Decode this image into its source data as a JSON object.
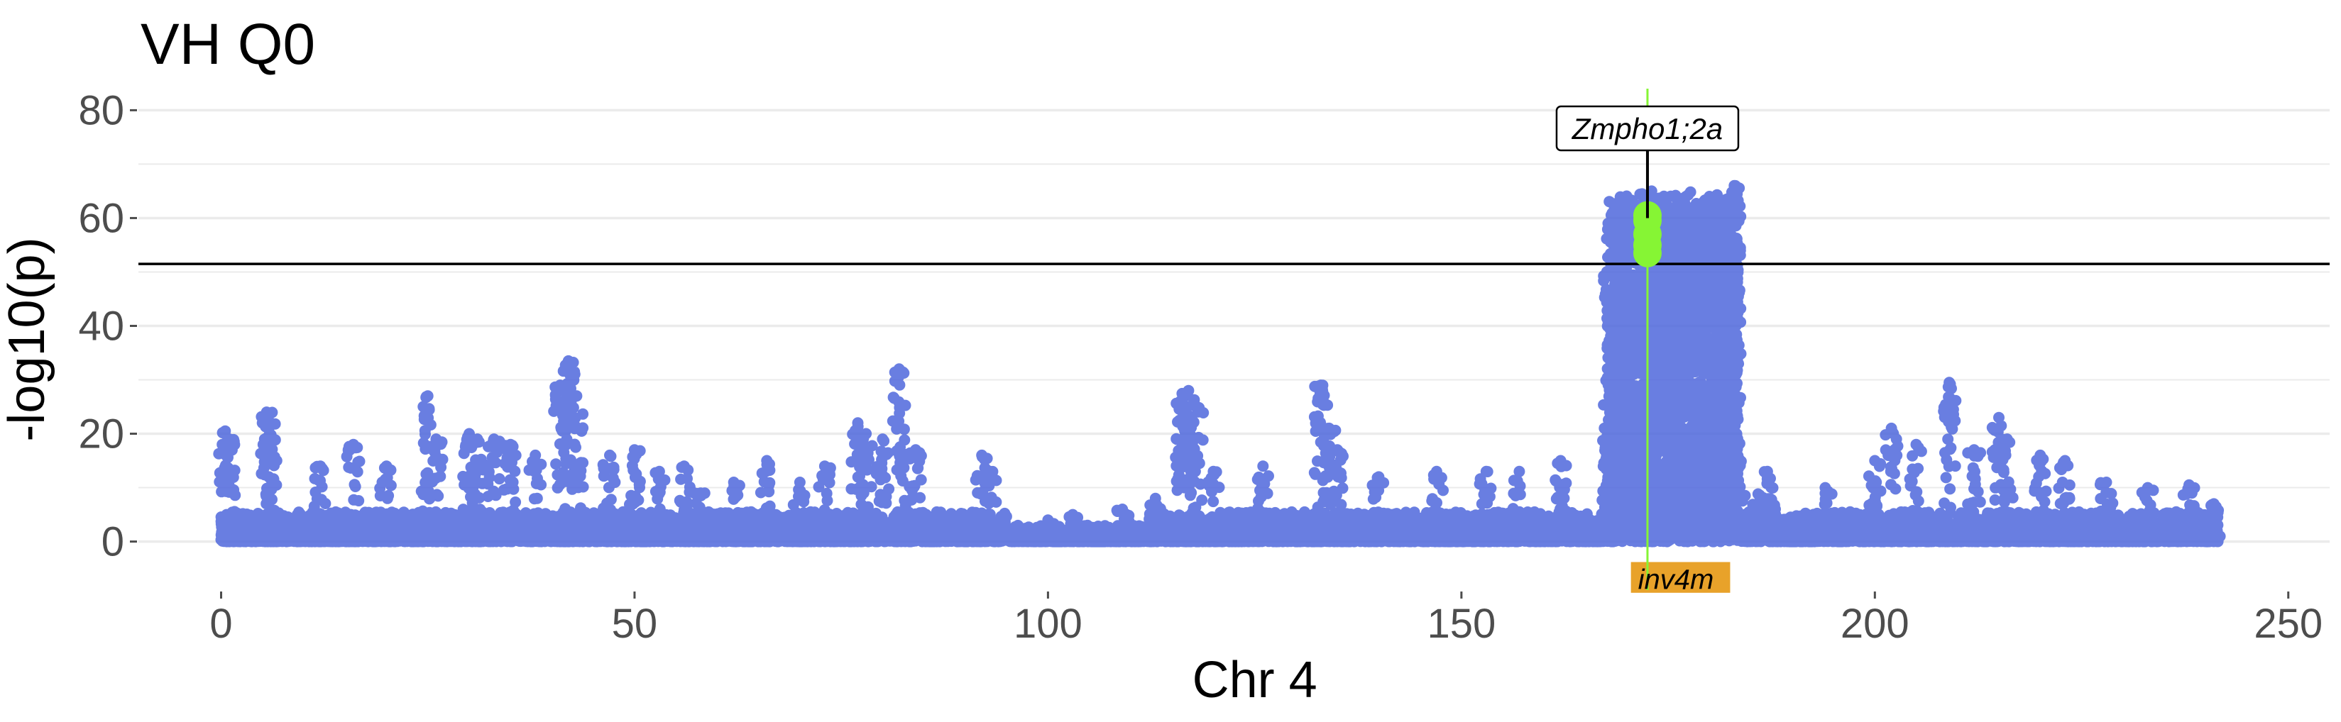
{
  "chart_data": {
    "type": "scatter",
    "title": "VH Q0",
    "xlabel": "Chr 4",
    "ylabel": "-log10(p)",
    "xlim": [
      -10,
      255
    ],
    "ylim": [
      -9,
      84
    ],
    "x_ticks": [
      0,
      50,
      100,
      150,
      200,
      250
    ],
    "y_ticks": [
      0,
      20,
      40,
      60,
      80
    ],
    "grid": true,
    "legend": "none",
    "point_color": "#4f67dc",
    "highlight_color": "#86f534",
    "threshold": 51.5,
    "gene_marker": {
      "label": "Zmpho1;2a",
      "x": 172.5,
      "y": 60
    },
    "region": {
      "label": "inv4m",
      "start": 170.5,
      "end": 182.5,
      "color": "#e8a22a"
    },
    "peaks": [
      [
        0.5,
        20.5
      ],
      [
        1,
        19
      ],
      [
        5.5,
        24
      ],
      [
        6,
        22
      ],
      [
        12,
        14
      ],
      [
        16,
        18
      ],
      [
        20,
        14
      ],
      [
        25,
        27
      ],
      [
        26,
        19
      ],
      [
        30,
        20
      ],
      [
        31,
        19
      ],
      [
        33,
        19
      ],
      [
        35,
        18
      ],
      [
        38,
        16
      ],
      [
        41,
        29
      ],
      [
        42,
        33.5
      ],
      [
        43,
        27
      ],
      [
        47,
        16
      ],
      [
        50,
        17
      ],
      [
        53,
        13
      ],
      [
        56,
        14
      ],
      [
        58,
        9
      ],
      [
        62,
        11
      ],
      [
        66,
        15
      ],
      [
        70,
        11
      ],
      [
        73,
        14
      ],
      [
        77,
        22
      ],
      [
        78,
        20
      ],
      [
        80,
        19
      ],
      [
        82,
        32
      ],
      [
        84,
        17
      ],
      [
        92,
        16
      ],
      [
        93,
        13
      ],
      [
        100,
        4
      ],
      [
        103,
        5
      ],
      [
        109,
        6
      ],
      [
        113,
        8
      ],
      [
        116,
        26
      ],
      [
        117,
        28
      ],
      [
        118,
        25
      ],
      [
        120,
        13
      ],
      [
        126,
        14
      ],
      [
        133,
        29
      ],
      [
        134,
        21
      ],
      [
        135,
        17
      ],
      [
        140,
        12
      ],
      [
        147,
        13
      ],
      [
        153,
        13
      ],
      [
        157,
        13
      ],
      [
        162,
        15
      ],
      [
        168,
        19
      ],
      [
        171,
        15
      ],
      [
        173,
        65
      ],
      [
        180,
        64
      ],
      [
        183,
        66
      ],
      [
        187,
        13
      ],
      [
        194,
        10
      ],
      [
        200,
        15
      ],
      [
        202,
        21
      ],
      [
        205,
        18
      ],
      [
        209,
        29.5
      ],
      [
        212,
        17
      ],
      [
        215,
        23
      ],
      [
        216,
        19
      ],
      [
        220,
        16
      ],
      [
        223,
        15
      ],
      [
        228,
        11
      ],
      [
        233,
        10
      ],
      [
        238,
        10.5
      ],
      [
        241,
        7
      ]
    ]
  }
}
